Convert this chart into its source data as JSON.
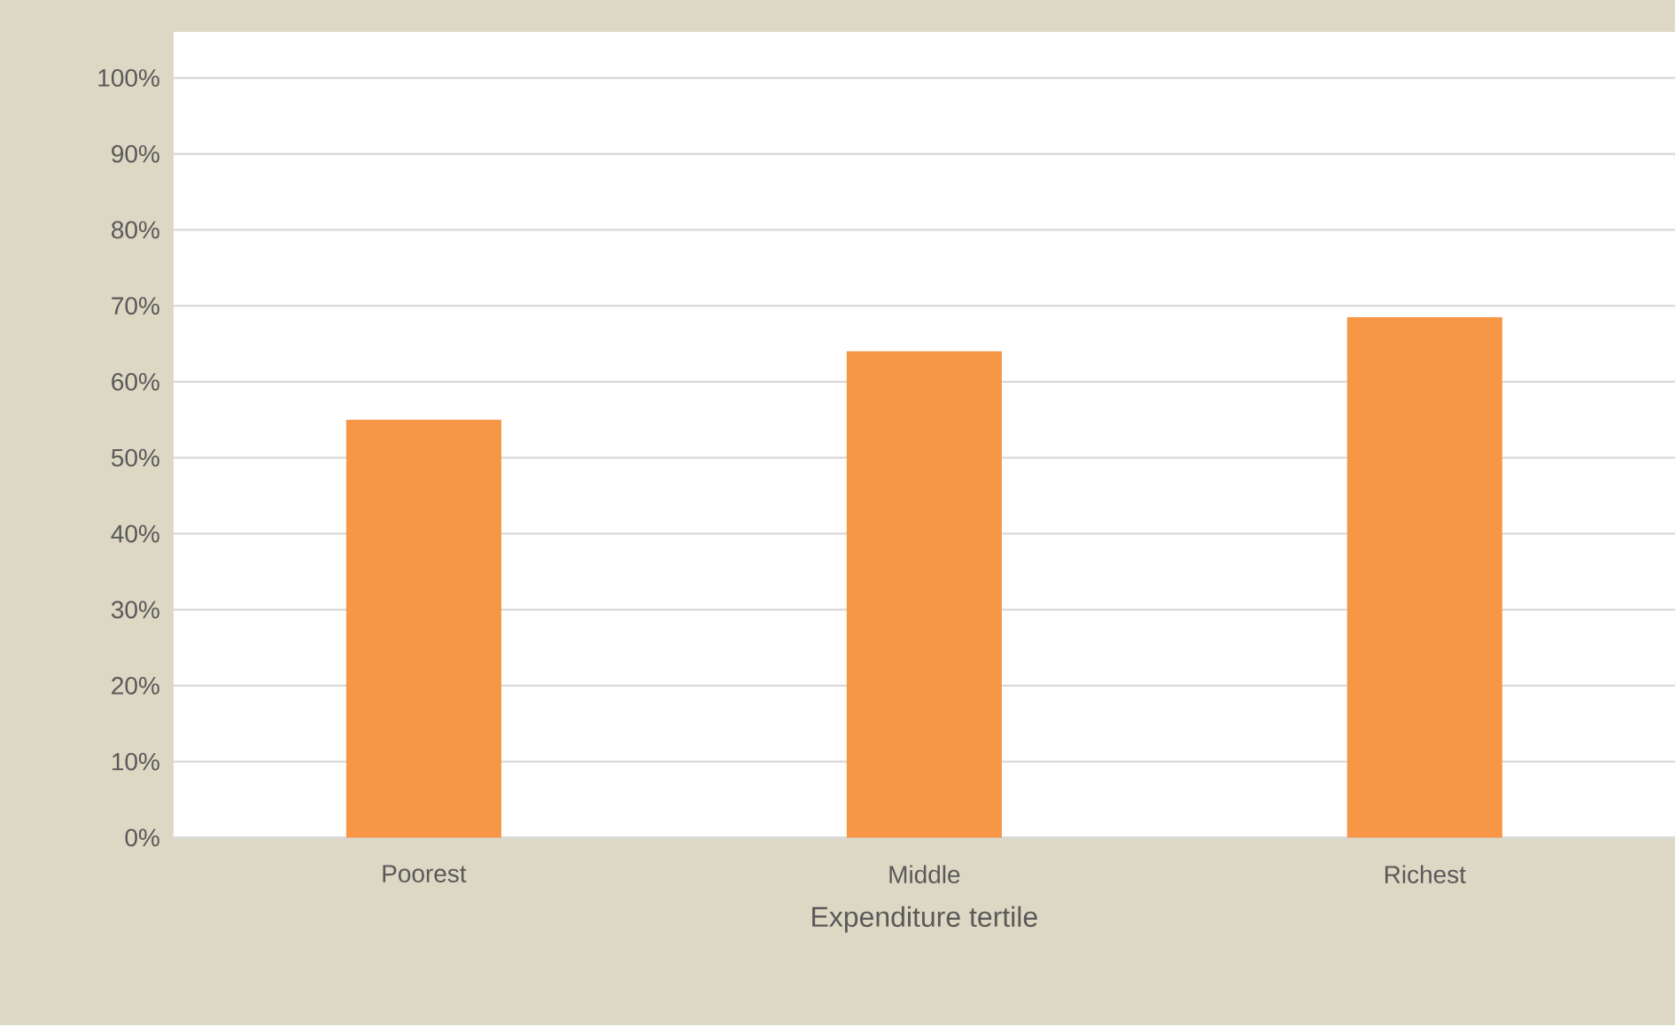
{
  "chart_data": {
    "type": "bar",
    "xlabel": "Expenditure tertile",
    "categories": [
      "Poorest",
      "Middle",
      "Richest"
    ],
    "values": [
      55,
      64,
      68.5
    ],
    "color": "#f79646",
    "ylim": [
      0,
      100
    ],
    "yticks": [
      {
        "value": 0,
        "label": "0%"
      },
      {
        "value": 10,
        "label": "10%"
      },
      {
        "value": 20,
        "label": "20%"
      },
      {
        "value": 30,
        "label": "30%"
      },
      {
        "value": 40,
        "label": "40%"
      },
      {
        "value": 50,
        "label": "50%"
      },
      {
        "value": 60,
        "label": "60%"
      },
      {
        "value": 70,
        "label": "70%"
      },
      {
        "value": 80,
        "label": "80%"
      },
      {
        "value": 90,
        "label": "90%"
      },
      {
        "value": 100,
        "label": "100%"
      }
    ],
    "grid": "y"
  }
}
